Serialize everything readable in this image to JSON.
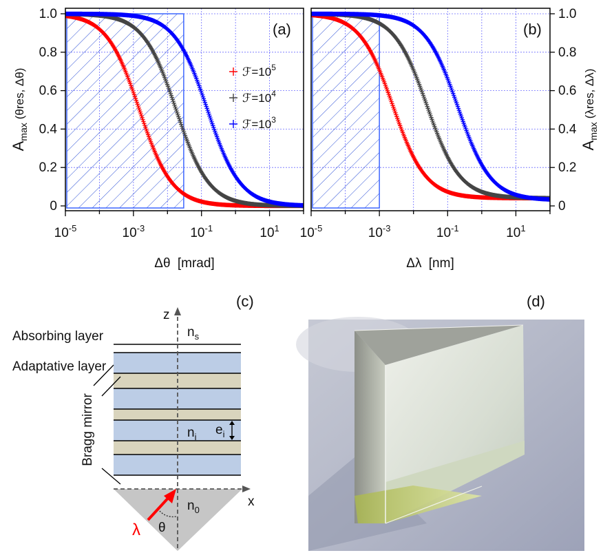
{
  "chart_data": [
    {
      "type": "line",
      "panel_label": "(a)",
      "xlabel_symbol": "Δθ",
      "xlabel_unit": "[mrad]",
      "ylabel_main": "A",
      "ylabel_sub": "max",
      "ylabel_args": "(θres, Δθ)",
      "x_scale": "log",
      "xlim": [
        1e-05,
        100
      ],
      "ylim": [
        0,
        1
      ],
      "x_ticks": [
        {
          "base": "10",
          "exp": "-5"
        },
        {
          "base": "10",
          "exp": "-3"
        },
        {
          "base": "10",
          "exp": "-1"
        },
        {
          "base": "10",
          "exp": "1"
        }
      ],
      "y_ticks": [
        "0",
        "0.2",
        "0.4",
        "0.6",
        "0.8",
        "1.0"
      ],
      "grid": true,
      "hatched_region": {
        "x": [
          1e-05,
          0.03
        ],
        "y": [
          0,
          1.0
        ]
      },
      "legend_position": "center-right",
      "series": [
        {
          "name": "ℱ=10",
          "name_exp": "5",
          "color": "#ff0000",
          "x0": 0.0015,
          "floor": 0.0
        },
        {
          "name": "ℱ=10",
          "name_exp": "4",
          "color": "#444444",
          "x0": 0.018,
          "floor": 0.0
        },
        {
          "name": "ℱ=10",
          "name_exp": "3",
          "color": "#0000ff",
          "x0": 0.15,
          "floor": 0.0
        }
      ]
    },
    {
      "type": "line",
      "panel_label": "(b)",
      "xlabel_symbol": "Δλ",
      "xlabel_unit": "[nm]",
      "ylabel_main": "A",
      "ylabel_sub": "max",
      "ylabel_args": "(λres, Δλ)",
      "x_scale": "log",
      "xlim": [
        1e-05,
        100
      ],
      "ylim": [
        0,
        1
      ],
      "x_ticks": [
        {
          "base": "10",
          "exp": "-5"
        },
        {
          "base": "10",
          "exp": "-3"
        },
        {
          "base": "10",
          "exp": "-1"
        },
        {
          "base": "10",
          "exp": "1"
        }
      ],
      "y_ticks": [
        "0",
        "0.2",
        "0.4",
        "0.6",
        "0.8",
        "1.0"
      ],
      "grid": true,
      "hatched_region": {
        "x": [
          1e-05,
          0.001
        ],
        "y": [
          0,
          1.0
        ]
      },
      "series": [
        {
          "color": "#ff0000",
          "x0": 0.0025,
          "floor": 0.04
        },
        {
          "color": "#444444",
          "x0": 0.025,
          "floor": 0.04
        },
        {
          "color": "#0000ff",
          "x0": 0.2,
          "floor": 0.03
        }
      ]
    }
  ],
  "diagram_c": {
    "panel_label": "(c)",
    "axis_z": "z",
    "axis_x": "x",
    "labels": {
      "absorbing": "Absorbing layer",
      "adaptative": "Adaptative layer",
      "bragg": "Bragg mirror",
      "n_s": "n",
      "n_s_sub": "s",
      "n_i": "n",
      "n_i_sub": "i",
      "e_i": "e",
      "e_i_sub": "i",
      "n_0": "n",
      "n_0_sub": "0",
      "lambda": "λ",
      "theta": "θ"
    },
    "colors": {
      "layer_blue": "#bccde6",
      "layer_beige": "#d9d4bd",
      "prism": "#c6c6c6",
      "beam": "#ff0000"
    }
  },
  "photo_d": {
    "panel_label": "(d)",
    "subject": "glass prism"
  }
}
